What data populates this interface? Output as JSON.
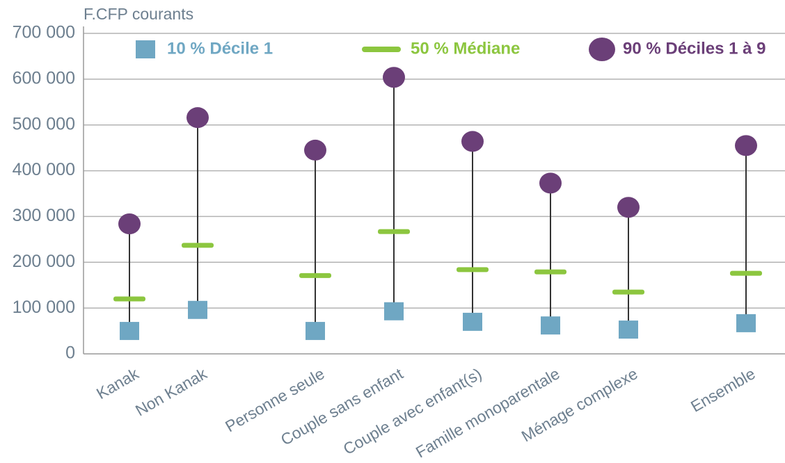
{
  "chart_data": {
    "type": "range",
    "y_label": "F.CFP courants",
    "categories": [
      "Kanak",
      "Non Kanak",
      "Personne seule",
      "Couple sans enfant",
      "Couple avec enfant(s)",
      "Famille monoparentale",
      "Ménage complexe",
      "Ensemble"
    ],
    "series": [
      {
        "name": "10 % Décile 1",
        "color": "#6fa7c3",
        "marker": "square",
        "values": [
          50000,
          96000,
          50000,
          93000,
          70000,
          62000,
          53000,
          67000
        ]
      },
      {
        "name": "50 % Médiane",
        "color": "#8cc63f",
        "marker": "dash",
        "values": [
          120000,
          237000,
          171000,
          267000,
          184000,
          179000,
          135000,
          176000
        ]
      },
      {
        "name": "90 % Déciles 1 à 9",
        "color": "#6b3f78",
        "marker": "circle",
        "values": [
          284000,
          516000,
          445000,
          604000,
          464000,
          373000,
          320000,
          455000
        ]
      }
    ],
    "ylim": [
      0,
      700000
    ],
    "yticks": [
      0,
      {
        "value": 100000,
        "label": "100 000"
      },
      {
        "value": 200000,
        "label": "200 000"
      },
      {
        "value": 300000,
        "label": "300 000"
      },
      {
        "value": 400000,
        "label": "400 000"
      },
      {
        "value": 500000,
        "label": "500 000"
      },
      {
        "value": 600000,
        "label": "600 000"
      },
      {
        "value": 700000,
        "label": "700 000"
      }
    ],
    "grid": true
  }
}
